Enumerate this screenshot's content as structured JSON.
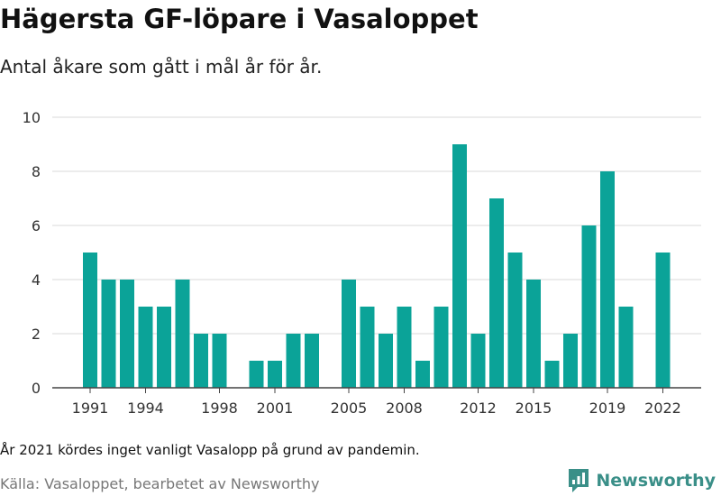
{
  "title": "Hägersta GF-löpare i Vasaloppet",
  "subtitle": "Antal åkare som gått i mål år för år.",
  "note": "År 2021 kördes inget vanligt Vasalopp på grund av pandemin.",
  "source": "Källa: Vasaloppet, bearbetet av Newsworthy",
  "brand": {
    "name": "Newsworthy",
    "color": "#3a8f88"
  },
  "colors": {
    "bar": "#0ba398",
    "grid": "#d9d9d9",
    "axis": "#444444"
  },
  "chart_data": {
    "type": "bar",
    "title": "Hägersta GF-löpare i Vasaloppet",
    "subtitle": "Antal åkare som gått i mål år för år.",
    "xlabel": "",
    "ylabel": "",
    "ylim": [
      0,
      10
    ],
    "yticks": [
      0,
      2,
      4,
      6,
      8,
      10
    ],
    "xticks": [
      1991,
      1994,
      1998,
      2001,
      2005,
      2008,
      2012,
      2015,
      2019,
      2022
    ],
    "grid": true,
    "categories": [
      1991,
      1992,
      1993,
      1994,
      1995,
      1996,
      1997,
      1998,
      1999,
      2000,
      2001,
      2002,
      2003,
      2004,
      2005,
      2006,
      2007,
      2008,
      2009,
      2010,
      2011,
      2012,
      2013,
      2014,
      2015,
      2016,
      2017,
      2018,
      2019,
      2020,
      2021,
      2022
    ],
    "values": [
      5,
      4,
      4,
      3,
      3,
      4,
      2,
      2,
      0,
      1,
      1,
      2,
      2,
      0,
      4,
      3,
      2,
      3,
      1,
      3,
      9,
      2,
      7,
      5,
      4,
      1,
      2,
      6,
      8,
      3,
      0,
      5
    ]
  }
}
